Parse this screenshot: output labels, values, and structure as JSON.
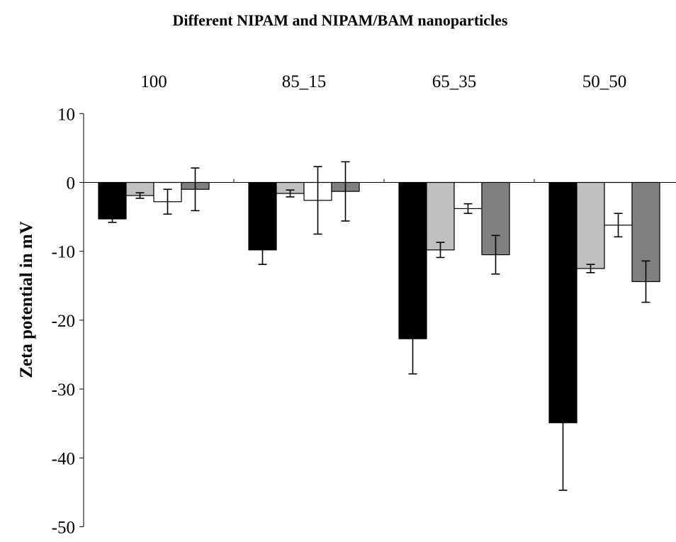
{
  "chart_data": {
    "type": "bar",
    "title": "Different NIPAM and NIPAM/BAM nanoparticles",
    "xlabel": "",
    "ylabel": "Zeta potential in mV",
    "ylim": [
      -50,
      10
    ],
    "yticks": [
      10,
      0,
      -10,
      -20,
      -30,
      -40,
      -50
    ],
    "categories": [
      "100",
      "85_15",
      "65_35",
      "50_50"
    ],
    "category_axis_position": "top",
    "grid": false,
    "legend": "none",
    "series": [
      {
        "color": "#000000",
        "values": [
          -5.3,
          -9.8,
          -22.7,
          -34.9
        ],
        "errors": [
          0.5,
          2.1,
          5.1,
          9.8
        ]
      },
      {
        "color": "#c0c0c0",
        "values": [
          -1.9,
          -1.6,
          -9.8,
          -12.5
        ],
        "errors": [
          0.4,
          0.5,
          1.1,
          0.6
        ]
      },
      {
        "color": "#ffffff",
        "values": [
          -2.8,
          -2.6,
          -3.8,
          -6.2
        ],
        "errors": [
          1.8,
          4.9,
          0.7,
          1.7
        ]
      },
      {
        "color": "#808080",
        "values": [
          -1.0,
          -1.3,
          -10.5,
          -14.4
        ],
        "errors": [
          3.1,
          4.3,
          2.8,
          3.0
        ]
      }
    ]
  }
}
